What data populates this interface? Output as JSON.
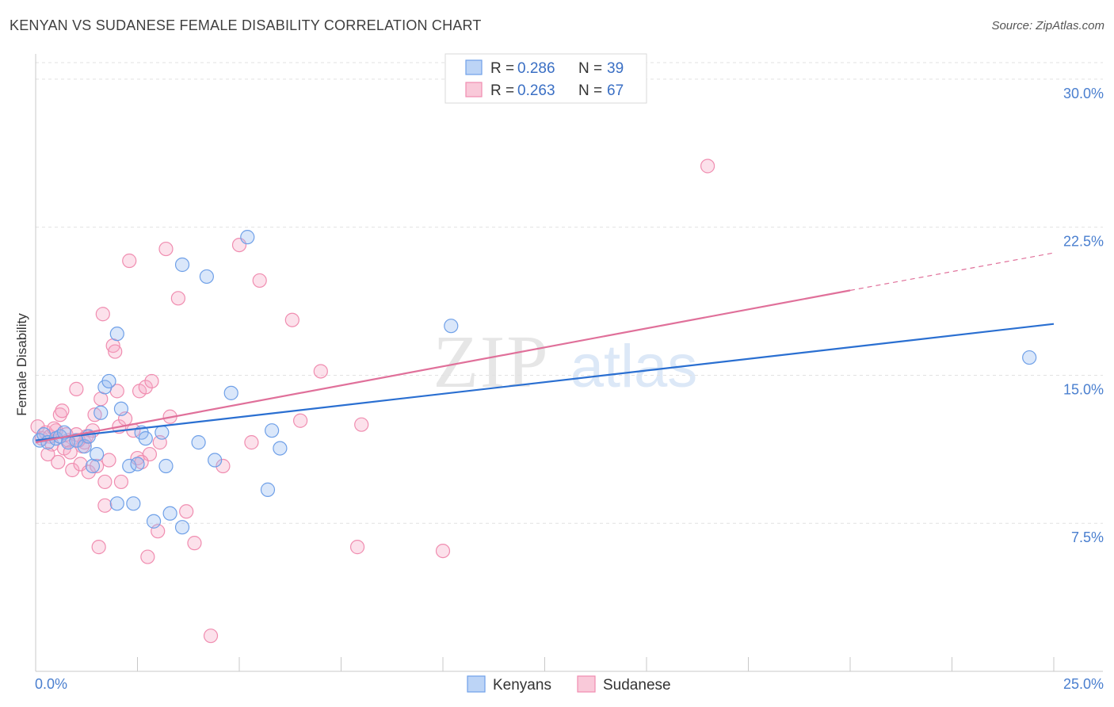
{
  "title": "KENYAN VS SUDANESE FEMALE DISABILITY CORRELATION CHART",
  "source": "Source: ZipAtlas.com",
  "watermark": {
    "zip": "ZIP",
    "atlas": "atlas"
  },
  "legend_top": [
    {
      "r_label": "R = ",
      "r_value": "0.286",
      "n_label": "N = ",
      "n_value": "39"
    },
    {
      "r_label": "R = ",
      "r_value": "0.263",
      "n_label": "N = ",
      "n_value": "67"
    }
  ],
  "chart_data": {
    "type": "scatter",
    "title": "KENYAN VS SUDANESE FEMALE DISABILITY CORRELATION CHART",
    "xlabel": "",
    "ylabel": "Female Disability",
    "xlim": [
      0,
      25
    ],
    "ylim": [
      0,
      31
    ],
    "x_tick_labels": [
      "0.0%",
      "25.0%"
    ],
    "y_ticks": [
      7.5,
      15.0,
      22.5,
      30.0
    ],
    "y_tick_labels": [
      "7.5%",
      "15.0%",
      "22.5%",
      "30.0%"
    ],
    "grid": true,
    "legend_position": "top-center",
    "colors": {
      "Kenyans": "#6fa0e8",
      "Sudanese": "#f08db0",
      "kenyan_line": "#2a6fd1",
      "sudanese_line": "#e0709a"
    },
    "series": [
      {
        "name": "Kenyans",
        "R": 0.286,
        "N": 39,
        "trend": {
          "x0": 0.0,
          "y0": 11.7,
          "x1": 25.0,
          "y1": 17.6
        },
        "points": [
          [
            0.1,
            11.7
          ],
          [
            0.2,
            12.0
          ],
          [
            0.3,
            11.6
          ],
          [
            0.5,
            11.8
          ],
          [
            0.6,
            11.9
          ],
          [
            0.7,
            12.1
          ],
          [
            0.8,
            11.6
          ],
          [
            1.0,
            11.7
          ],
          [
            1.2,
            11.4
          ],
          [
            1.3,
            11.9
          ],
          [
            1.4,
            10.4
          ],
          [
            1.5,
            11.0
          ],
          [
            1.6,
            13.1
          ],
          [
            1.7,
            14.4
          ],
          [
            1.8,
            14.7
          ],
          [
            2.0,
            17.1
          ],
          [
            2.1,
            13.3
          ],
          [
            2.3,
            10.4
          ],
          [
            2.5,
            10.5
          ],
          [
            2.6,
            12.1
          ],
          [
            2.7,
            11.8
          ],
          [
            2.9,
            7.6
          ],
          [
            3.1,
            12.1
          ],
          [
            3.2,
            10.4
          ],
          [
            3.3,
            8.0
          ],
          [
            3.6,
            7.3
          ],
          [
            3.6,
            20.6
          ],
          [
            4.0,
            11.6
          ],
          [
            4.2,
            20.0
          ],
          [
            4.4,
            10.7
          ],
          [
            4.8,
            14.1
          ],
          [
            5.2,
            22.0
          ],
          [
            5.7,
            9.2
          ],
          [
            5.8,
            12.2
          ],
          [
            6.0,
            11.3
          ],
          [
            2.0,
            8.5
          ],
          [
            2.4,
            8.5
          ],
          [
            10.2,
            17.5
          ],
          [
            24.4,
            15.9
          ]
        ]
      },
      {
        "name": "Sudanese",
        "R": 0.263,
        "N": 67,
        "trend": {
          "x0": 0.0,
          "y0": 11.6,
          "x1": 20.0,
          "y1": 19.3,
          "dash_x1": 25.0,
          "dash_y1": 21.2
        },
        "points": [
          [
            0.05,
            12.4
          ],
          [
            0.15,
            11.8
          ],
          [
            0.25,
            12.1
          ],
          [
            0.35,
            11.9
          ],
          [
            0.4,
            11.5
          ],
          [
            0.5,
            12.2
          ],
          [
            0.55,
            10.6
          ],
          [
            0.6,
            13.0
          ],
          [
            0.65,
            13.2
          ],
          [
            0.7,
            11.3
          ],
          [
            0.8,
            11.7
          ],
          [
            0.85,
            11.1
          ],
          [
            0.9,
            10.2
          ],
          [
            1.0,
            12.0
          ],
          [
            1.0,
            14.3
          ],
          [
            1.1,
            10.5
          ],
          [
            1.15,
            11.4
          ],
          [
            1.2,
            11.6
          ],
          [
            1.3,
            10.1
          ],
          [
            1.4,
            12.2
          ],
          [
            1.45,
            13.0
          ],
          [
            1.5,
            10.4
          ],
          [
            1.55,
            6.3
          ],
          [
            1.6,
            13.8
          ],
          [
            1.65,
            18.1
          ],
          [
            1.7,
            9.6
          ],
          [
            1.7,
            8.4
          ],
          [
            1.8,
            10.7
          ],
          [
            1.9,
            16.5
          ],
          [
            1.95,
            16.2
          ],
          [
            2.0,
            14.2
          ],
          [
            2.05,
            12.4
          ],
          [
            2.1,
            9.6
          ],
          [
            2.2,
            12.8
          ],
          [
            2.3,
            20.8
          ],
          [
            2.4,
            12.2
          ],
          [
            2.5,
            10.8
          ],
          [
            2.55,
            14.2
          ],
          [
            2.7,
            14.4
          ],
          [
            2.75,
            5.8
          ],
          [
            2.8,
            11.0
          ],
          [
            2.85,
            14.7
          ],
          [
            3.0,
            7.1
          ],
          [
            3.05,
            11.6
          ],
          [
            3.2,
            21.4
          ],
          [
            3.3,
            12.9
          ],
          [
            3.5,
            18.9
          ],
          [
            3.7,
            8.1
          ],
          [
            3.9,
            6.5
          ],
          [
            4.3,
            1.8
          ],
          [
            4.6,
            10.4
          ],
          [
            5.0,
            21.6
          ],
          [
            5.3,
            11.6
          ],
          [
            5.5,
            19.8
          ],
          [
            6.3,
            17.8
          ],
          [
            6.5,
            12.7
          ],
          [
            7.0,
            15.2
          ],
          [
            7.9,
            6.3
          ],
          [
            8.0,
            12.5
          ],
          [
            10.0,
            6.1
          ],
          [
            16.5,
            25.6
          ],
          [
            0.3,
            11.0
          ],
          [
            0.45,
            12.3
          ],
          [
            1.25,
            11.9
          ],
          [
            2.6,
            10.6
          ],
          [
            1.05,
            11.7
          ],
          [
            0.75,
            12.0
          ]
        ]
      }
    ]
  },
  "legend_bottom": [
    "Kenyans",
    "Sudanese"
  ]
}
